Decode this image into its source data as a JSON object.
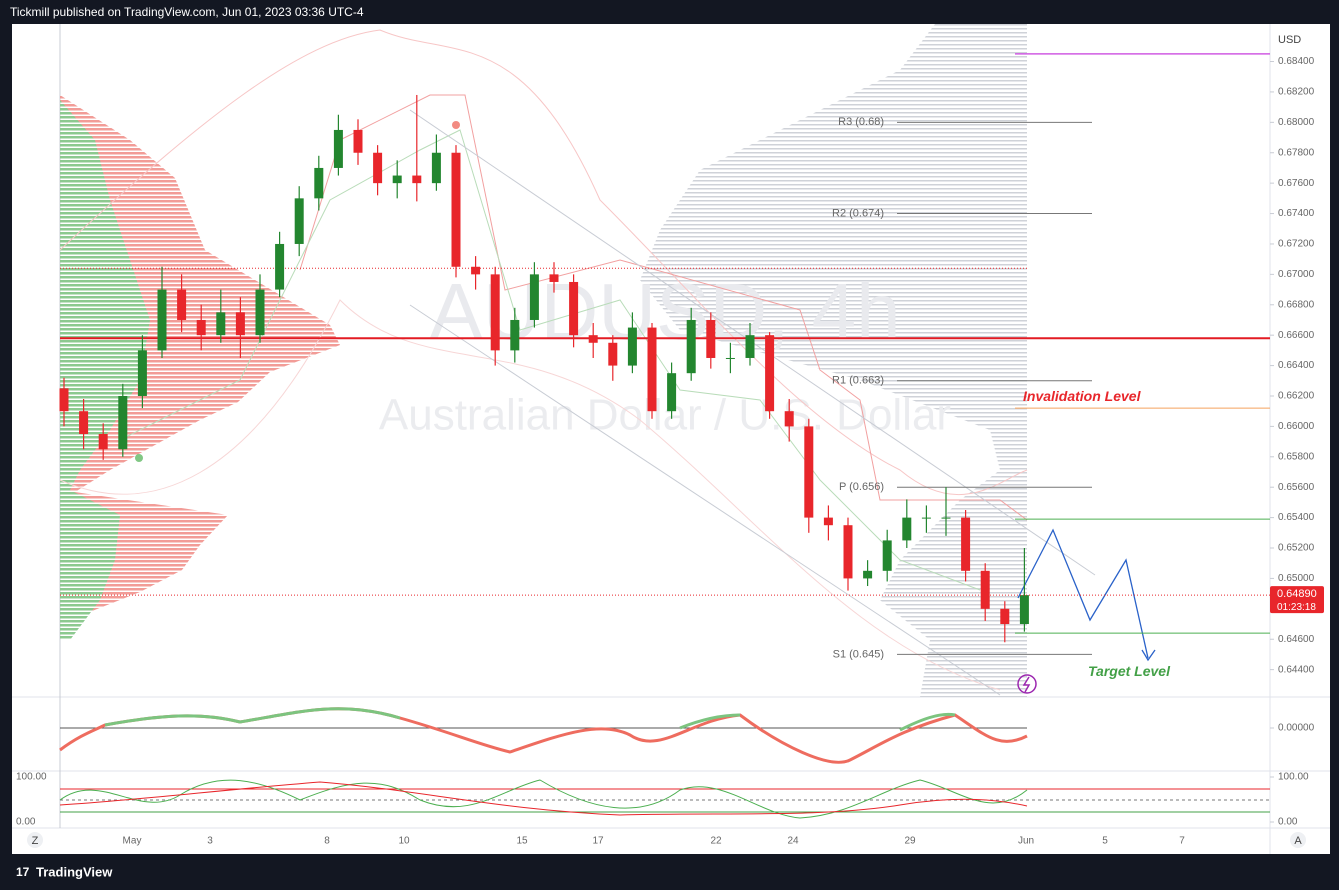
{
  "header": {
    "text": "Tickmill published on TradingView.com, Jun 01, 2023 03:36 UTC-4"
  },
  "footer": {
    "logo": "TradingView",
    "left_button": "Z",
    "right_button": "A"
  },
  "chart_data": {
    "type": "candlestick",
    "title": "AUDUSD, 4h",
    "subtitle": "Australian Dollar / U.S. Dollar",
    "currency": "USD",
    "x_labels": [
      "May",
      "3",
      "8",
      "10",
      "15",
      "17",
      "22",
      "24",
      "29",
      "Jun",
      "5",
      "7"
    ],
    "open": [
      0.6625,
      0.661,
      0.6595,
      0.6585,
      0.662,
      0.665,
      0.669,
      0.667,
      0.666,
      0.6675,
      0.666,
      0.669,
      0.672,
      0.675,
      0.677,
      0.6795,
      0.678,
      0.676,
      0.6765,
      0.676,
      0.678,
      0.6705,
      0.67,
      0.665,
      0.667,
      0.67,
      0.6695,
      0.666,
      0.6655,
      0.664,
      0.6665,
      0.661,
      0.6635,
      0.667,
      0.6645,
      0.6645,
      0.666,
      0.661,
      0.66,
      0.654,
      0.6535,
      0.65,
      0.6505,
      0.6525,
      0.654,
      0.654,
      0.654,
      0.6505,
      0.648,
      0.647
    ],
    "high": [
      0.6632,
      0.6618,
      0.6602,
      0.6628,
      0.666,
      0.6705,
      0.67,
      0.668,
      0.669,
      0.6685,
      0.67,
      0.6728,
      0.6758,
      0.6778,
      0.6805,
      0.6802,
      0.6785,
      0.6775,
      0.6818,
      0.6792,
      0.6785,
      0.6712,
      0.6705,
      0.6678,
      0.6708,
      0.6708,
      0.67,
      0.6668,
      0.666,
      0.6675,
      0.6668,
      0.6642,
      0.6678,
      0.6675,
      0.6655,
      0.6668,
      0.6662,
      0.6618,
      0.6605,
      0.6548,
      0.654,
      0.6512,
      0.6532,
      0.6552,
      0.6548,
      0.656,
      0.6545,
      0.651,
      0.6485,
      0.652
    ],
    "low": [
      0.66,
      0.6585,
      0.6578,
      0.658,
      0.6612,
      0.6645,
      0.6662,
      0.665,
      0.6655,
      0.6645,
      0.6655,
      0.6685,
      0.6712,
      0.6742,
      0.6765,
      0.6772,
      0.6752,
      0.675,
      0.6748,
      0.6755,
      0.6698,
      0.669,
      0.664,
      0.6642,
      0.6665,
      0.6688,
      0.6652,
      0.6645,
      0.663,
      0.6635,
      0.6605,
      0.6605,
      0.663,
      0.6638,
      0.6635,
      0.664,
      0.6605,
      0.659,
      0.653,
      0.6525,
      0.6492,
      0.6495,
      0.6498,
      0.652,
      0.653,
      0.6528,
      0.6498,
      0.6472,
      0.6458,
      0.6465
    ],
    "close": [
      0.661,
      0.6595,
      0.6585,
      0.662,
      0.665,
      0.669,
      0.667,
      0.666,
      0.6675,
      0.666,
      0.669,
      0.672,
      0.675,
      0.677,
      0.6795,
      0.678,
      0.676,
      0.6765,
      0.676,
      0.678,
      0.6705,
      0.67,
      0.665,
      0.667,
      0.67,
      0.6695,
      0.666,
      0.6655,
      0.664,
      0.6665,
      0.661,
      0.6635,
      0.667,
      0.6645,
      0.6645,
      0.666,
      0.661,
      0.66,
      0.654,
      0.6535,
      0.65,
      0.6505,
      0.6525,
      0.654,
      0.654,
      0.654,
      0.6505,
      0.648,
      0.647,
      0.6489
    ],
    "up_color": "#23862f",
    "down_color": "#e8262b",
    "ylim": [
      0.6422,
      0.6866
    ],
    "yticks": [
      {
        "value": 0.684,
        "label": "0.68400"
      },
      {
        "value": 0.682,
        "label": "0.68200"
      },
      {
        "value": 0.68,
        "label": "0.68000"
      },
      {
        "value": 0.678,
        "label": "0.67800"
      },
      {
        "value": 0.676,
        "label": "0.67600"
      },
      {
        "value": 0.674,
        "label": "0.67400"
      },
      {
        "value": 0.672,
        "label": "0.67200"
      },
      {
        "value": 0.67,
        "label": "0.67000"
      },
      {
        "value": 0.668,
        "label": "0.66800"
      },
      {
        "value": 0.666,
        "label": "0.66600"
      },
      {
        "value": 0.664,
        "label": "0.66400"
      },
      {
        "value": 0.662,
        "label": "0.66200"
      },
      {
        "value": 0.66,
        "label": "0.66000"
      },
      {
        "value": 0.658,
        "label": "0.65800"
      },
      {
        "value": 0.656,
        "label": "0.65600"
      },
      {
        "value": 0.654,
        "label": "0.65400"
      },
      {
        "value": 0.652,
        "label": "0.65200"
      },
      {
        "value": 0.65,
        "label": "0.65000"
      },
      {
        "value": 0.648,
        "label": "0.64800"
      },
      {
        "value": 0.646,
        "label": "0.64600"
      },
      {
        "value": 0.644,
        "label": "0.64400"
      }
    ],
    "pivots": [
      {
        "label": "R3 (0.68)",
        "value": 0.68
      },
      {
        "label": "R2 (0.674)",
        "value": 0.674
      },
      {
        "label": "R1 (0.663)",
        "value": 0.663
      },
      {
        "label": "P (0.656)",
        "value": 0.656
      },
      {
        "label": "S1 (0.645)",
        "value": 0.645
      }
    ],
    "levels": [
      {
        "value": 0.6658,
        "color": "#e31b23"
      },
      {
        "value": 0.6704,
        "color": "#e8262b"
      },
      {
        "value": 0.6845,
        "color": "#d05ce3"
      },
      {
        "value": 0.6612,
        "color": "#f5a25d",
        "label": "Invalidation Level",
        "label_color": "#e8262b"
      },
      {
        "value": 0.6539,
        "color": "#4caf50"
      },
      {
        "value": 0.6464,
        "color": "#4caf50",
        "label": "Target Level",
        "label_color": "#43a047"
      }
    ],
    "last_price": {
      "value": 0.6489,
      "label": "0.64890",
      "countdown": "01:23:18"
    },
    "oscillator_yticks": [
      {
        "value": 0,
        "label": "0.00000"
      }
    ],
    "stoch_ylim": [
      -13.3,
      111.1
    ],
    "stoch_yticks": [
      {
        "value": 100,
        "label": "100.00"
      },
      {
        "value": 0,
        "label": "0.00"
      }
    ]
  }
}
